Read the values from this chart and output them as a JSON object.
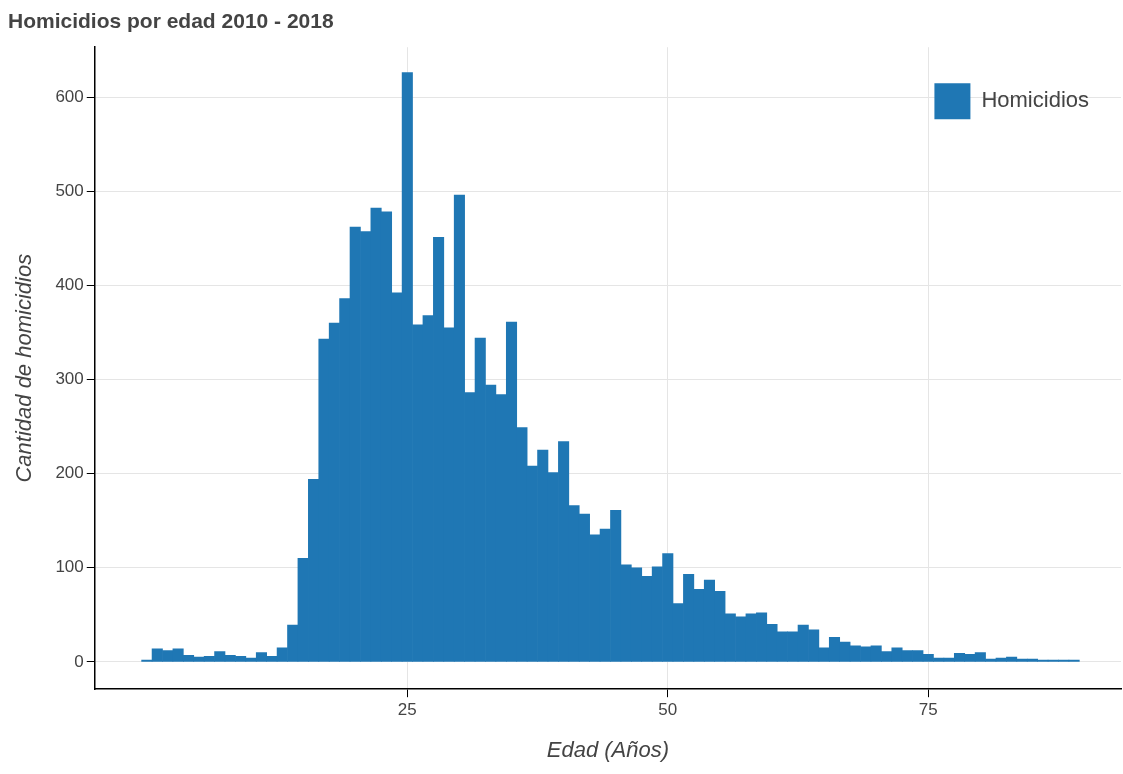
{
  "chart_data": {
    "type": "histogram",
    "title": "Homicidios por edad 2010 - 2018",
    "xlabel": "Edad (Años)",
    "ylabel": "Cantidad de homicidios",
    "bins": [
      -0.5,
      0.5,
      1.5,
      2.5,
      3.5,
      4.5,
      5.5,
      6.5,
      7.5,
      8.5,
      9.5,
      10.5,
      11.5,
      12.5,
      13.5,
      14.5,
      15.5,
      16.5,
      17.5,
      18.5,
      19.5,
      20.5,
      21.5,
      22.5,
      23.5,
      24.5,
      25.5,
      26.5,
      27.5,
      28.5,
      29.5,
      30.5,
      31.5,
      32.5,
      33.5,
      34.5,
      35.5,
      36.5,
      37.5,
      38.5,
      39.5,
      40.5,
      41.5,
      42.5,
      43.5,
      44.5,
      45.5,
      46.5,
      47.5,
      48.5,
      49.5,
      50.5,
      51.5,
      52.5,
      53.5,
      54.5,
      55.5,
      56.5,
      57.5,
      58.5,
      59.5,
      60.5,
      61.5,
      62.5,
      63.5,
      64.5,
      65.5,
      66.5,
      67.5,
      68.5,
      69.5,
      70.5,
      71.5,
      72.5,
      73.5,
      74.5,
      75.5,
      76.5,
      77.5,
      78.5,
      79.5,
      80.5,
      81.5,
      82.5,
      83.5,
      84.5,
      85.5,
      86.5,
      87.5,
      88.5,
      89.5
    ],
    "series": [
      {
        "name": "Homicidios",
        "color": "#1f77b4",
        "values": [
          2,
          14,
          12,
          14,
          7,
          5,
          6,
          11,
          7,
          6,
          4,
          10,
          6,
          15,
          39,
          110,
          194,
          343,
          360,
          386,
          462,
          457,
          482,
          478,
          392,
          626,
          358,
          368,
          451,
          355,
          496,
          286,
          344,
          294,
          284,
          361,
          249,
          208,
          225,
          201,
          234,
          166,
          157,
          135,
          141,
          161,
          103,
          100,
          91,
          101,
          115,
          62,
          93,
          77,
          87,
          75,
          51,
          48,
          51,
          52,
          40,
          32,
          32,
          39,
          34,
          15,
          26,
          21,
          17,
          16,
          17,
          11,
          15,
          12,
          12,
          8,
          4,
          4,
          9,
          8,
          10,
          3,
          4,
          5,
          3,
          3,
          2,
          2,
          2,
          2
        ]
      }
    ],
    "xlim": [
      -5,
      93.5
    ],
    "xticks": [
      25,
      50,
      75
    ],
    "ylim": [
      -29,
      653
    ],
    "yticks": [
      0,
      100,
      200,
      300,
      400,
      500,
      600
    ],
    "grid": true,
    "legend": "top right"
  }
}
